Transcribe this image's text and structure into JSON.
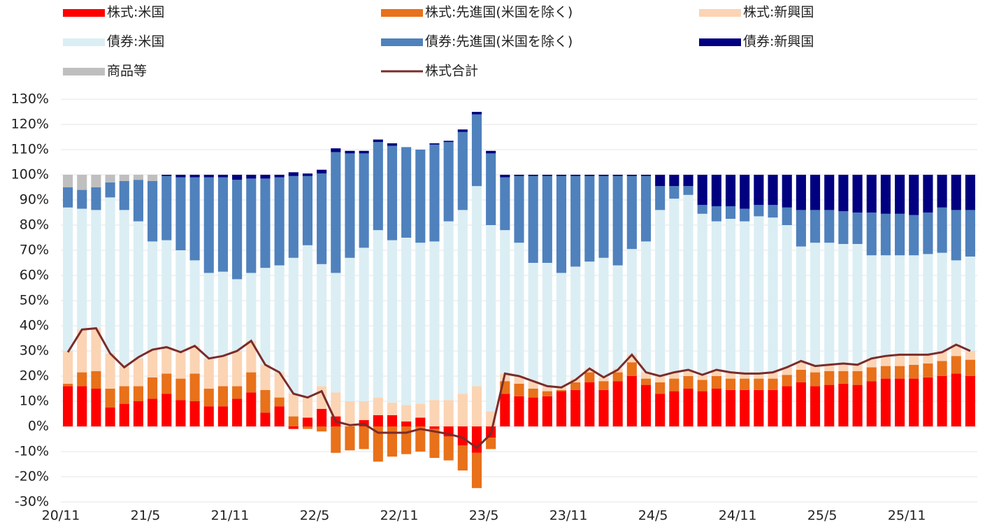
{
  "chart_data": {
    "type": "bar",
    "stacked": true,
    "grid": true,
    "categories": [
      "20/11",
      null,
      null,
      null,
      null,
      null,
      "21/5",
      null,
      null,
      null,
      null,
      null,
      "21/11",
      null,
      null,
      null,
      null,
      null,
      "22/5",
      null,
      null,
      null,
      null,
      null,
      "22/11",
      null,
      null,
      null,
      null,
      null,
      "23/5",
      null,
      null,
      null,
      null,
      null,
      "23/11",
      null,
      null,
      null,
      null,
      null,
      "24/5",
      null,
      null,
      null,
      null,
      null,
      "24/11",
      null,
      null,
      null,
      null,
      null,
      "25/5",
      null,
      null,
      null,
      null,
      null,
      "25/11",
      null,
      null,
      null,
      null
    ],
    "ylim": [
      -30,
      130
    ],
    "yticks": [
      {
        "value": -30,
        "label": "-30%"
      },
      {
        "value": -20,
        "label": "-20%"
      },
      {
        "value": -10,
        "label": "-10%"
      },
      {
        "value": 0,
        "label": "0%"
      },
      {
        "value": 10,
        "label": "10%"
      },
      {
        "value": 20,
        "label": "20%"
      },
      {
        "value": 30,
        "label": "30%"
      },
      {
        "value": 40,
        "label": "40%"
      },
      {
        "value": 50,
        "label": "50%"
      },
      {
        "value": 60,
        "label": "60%"
      },
      {
        "value": 70,
        "label": "70%"
      },
      {
        "value": 80,
        "label": "80%"
      },
      {
        "value": 90,
        "label": "90%"
      },
      {
        "value": 100,
        "label": "100%"
      },
      {
        "value": 110,
        "label": "110%"
      },
      {
        "value": 120,
        "label": "120%"
      },
      {
        "value": 130,
        "label": "130%"
      }
    ],
    "series": [
      {
        "name": "株式:米国",
        "color": "#ff0000",
        "values": [
          16,
          16,
          15,
          7.5,
          9,
          10,
          11,
          13,
          10.5,
          10,
          8,
          8,
          11,
          13.5,
          5.5,
          8,
          -1,
          3.5,
          7,
          4,
          0,
          2.5,
          4.5,
          4.5,
          2,
          3.5,
          -1,
          -4,
          -7.5,
          -10.5,
          -4.5,
          13,
          12,
          11.5,
          12,
          14,
          14.5,
          17.5,
          14.5,
          18,
          20,
          16.5,
          13,
          14,
          15,
          14,
          15,
          14.5,
          14.5,
          14.5,
          14.5,
          16,
          17.5,
          16,
          16.5,
          17,
          16.5,
          18,
          19,
          19,
          19,
          19.5,
          20,
          21,
          20
        ]
      },
      {
        "name": "株式:先進国(米国を除く)",
        "color": "#e8711a",
        "values": [
          1,
          5.5,
          7,
          7.5,
          7,
          6,
          8.5,
          8,
          8.5,
          11,
          7,
          8,
          5,
          8,
          9,
          3.5,
          4,
          -1,
          -2,
          -10.5,
          -9.5,
          -9,
          -14,
          -12,
          -11,
          -10,
          -11.5,
          -9.5,
          -10,
          -14,
          -4.5,
          5,
          5,
          3.5,
          2,
          0.5,
          3,
          4,
          3.5,
          3.5,
          5.5,
          2.5,
          4.5,
          5,
          5,
          4.5,
          5,
          4.5,
          4.5,
          4.5,
          4.5,
          4.5,
          5,
          5.5,
          5.5,
          5,
          5.5,
          5.5,
          5,
          5,
          5.5,
          5.5,
          6,
          7,
          6.5
        ]
      },
      {
        "name": "株式:新興国",
        "color": "#fbd4b4",
        "values": [
          13,
          17,
          17,
          14,
          8,
          11,
          11,
          10.5,
          10.5,
          11,
          12,
          12,
          14,
          12.5,
          10,
          10,
          9,
          8.5,
          9,
          9.5,
          10,
          7.5,
          7,
          5,
          6.5,
          5.5,
          10.5,
          10.5,
          13,
          16,
          6,
          3,
          3,
          3,
          2.5,
          1.5,
          1.5,
          1.5,
          1.5,
          1.5,
          3,
          2.5,
          2.5,
          2.5,
          2.5,
          2,
          2.5,
          2.5,
          2,
          2,
          2.5,
          3,
          3,
          2.5,
          2.5,
          3,
          2.5,
          3.5,
          4,
          4.5,
          4,
          3.5,
          4,
          4.5,
          3.5
        ]
      },
      {
        "name": "債券:米国",
        "color": "#dbeef4",
        "values": [
          57,
          48,
          47,
          62,
          62,
          54.5,
          43,
          42.5,
          40.5,
          34,
          34,
          33.5,
          28.5,
          27,
          38.5,
          42.5,
          54,
          60,
          48.5,
          47.5,
          57,
          61,
          66.5,
          64.5,
          66.5,
          64,
          63,
          71,
          73,
          79.5,
          74,
          57,
          53,
          47,
          48.5,
          45,
          44.5,
          42.5,
          47.5,
          41,
          42,
          52,
          66,
          69,
          69.5,
          64,
          59,
          61,
          60.5,
          62.5,
          61.5,
          56.5,
          46,
          49,
          48.5,
          47.5,
          48,
          41,
          40,
          39.5,
          39.5,
          40,
          39,
          33.5,
          37.5
        ]
      },
      {
        "name": "債券:先進国(米国を除く)",
        "color": "#4f81bd",
        "values": [
          8,
          7.5,
          9,
          6,
          11.5,
          16.5,
          24,
          25.5,
          29,
          33,
          38,
          37.5,
          39.5,
          37.5,
          35.5,
          35,
          32.5,
          27.5,
          36,
          48,
          41.5,
          37.5,
          35,
          37.5,
          36,
          37,
          38.5,
          31.5,
          31,
          28.5,
          28.5,
          21,
          26.5,
          34.5,
          34.5,
          38.5,
          36,
          34,
          32.5,
          35.5,
          29,
          26,
          9.5,
          5,
          3.5,
          3.5,
          6,
          5,
          5,
          4.5,
          5,
          7,
          14.5,
          13,
          13,
          13,
          12.5,
          17,
          16.5,
          16.5,
          16,
          16.5,
          18,
          20,
          18.5
        ]
      },
      {
        "name": "債券:新興国",
        "color": "#000080",
        "values": [
          0,
          0,
          0,
          0,
          0,
          0,
          0,
          0.5,
          1,
          1,
          1,
          1,
          2,
          1.5,
          1.5,
          1,
          1.5,
          1,
          1.5,
          1.5,
          1,
          1,
          1,
          1,
          0,
          0,
          0.5,
          0.5,
          1,
          1,
          1,
          1,
          0.5,
          0.5,
          0.5,
          0.5,
          0.5,
          0.5,
          0.5,
          0.5,
          0.5,
          0.5,
          4.5,
          4.5,
          4.5,
          12,
          12.5,
          12.5,
          13.5,
          12,
          12,
          13,
          14,
          14,
          14,
          14.5,
          15,
          15,
          15.5,
          15.5,
          16,
          15,
          13,
          14,
          14
        ]
      },
      {
        "name": "商品等",
        "color": "#bfbfbf",
        "values": [
          5,
          6,
          5,
          3,
          2.5,
          2,
          2.5,
          0,
          0,
          0,
          0,
          0,
          0,
          0,
          0,
          0,
          0,
          0,
          0,
          0,
          0,
          0,
          0,
          0,
          0,
          0,
          0,
          0,
          0,
          0,
          0,
          0,
          0,
          0,
          0,
          0,
          0,
          0,
          0,
          0,
          0,
          0,
          0,
          0,
          0,
          0,
          0,
          0,
          0,
          0,
          0,
          0,
          0,
          0,
          0,
          0,
          0,
          0,
          0,
          0,
          0,
          0,
          0,
          0,
          0
        ]
      },
      {
        "name": "株式合計",
        "color": "#7b2c2a",
        "type": "line",
        "values": [
          29.5,
          38.5,
          39,
          29,
          23.5,
          27.5,
          30.5,
          31.5,
          29.5,
          32,
          27,
          28,
          30,
          34,
          24.5,
          21.5,
          13,
          11.5,
          14,
          2,
          0.5,
          1,
          -2.5,
          -2.5,
          -2.5,
          -1,
          -2,
          -3,
          -4.5,
          -8.5,
          -3,
          21,
          20,
          18,
          16,
          15.5,
          18.5,
          23,
          19.5,
          22.5,
          28.5,
          21.5,
          20,
          21.5,
          22.5,
          20.5,
          22.5,
          21.5,
          21,
          21,
          21.5,
          23.5,
          26,
          24,
          24.5,
          25,
          24.5,
          27,
          28,
          28.5,
          28.5,
          28.5,
          29.5,
          32.5,
          30
        ]
      }
    ]
  }
}
